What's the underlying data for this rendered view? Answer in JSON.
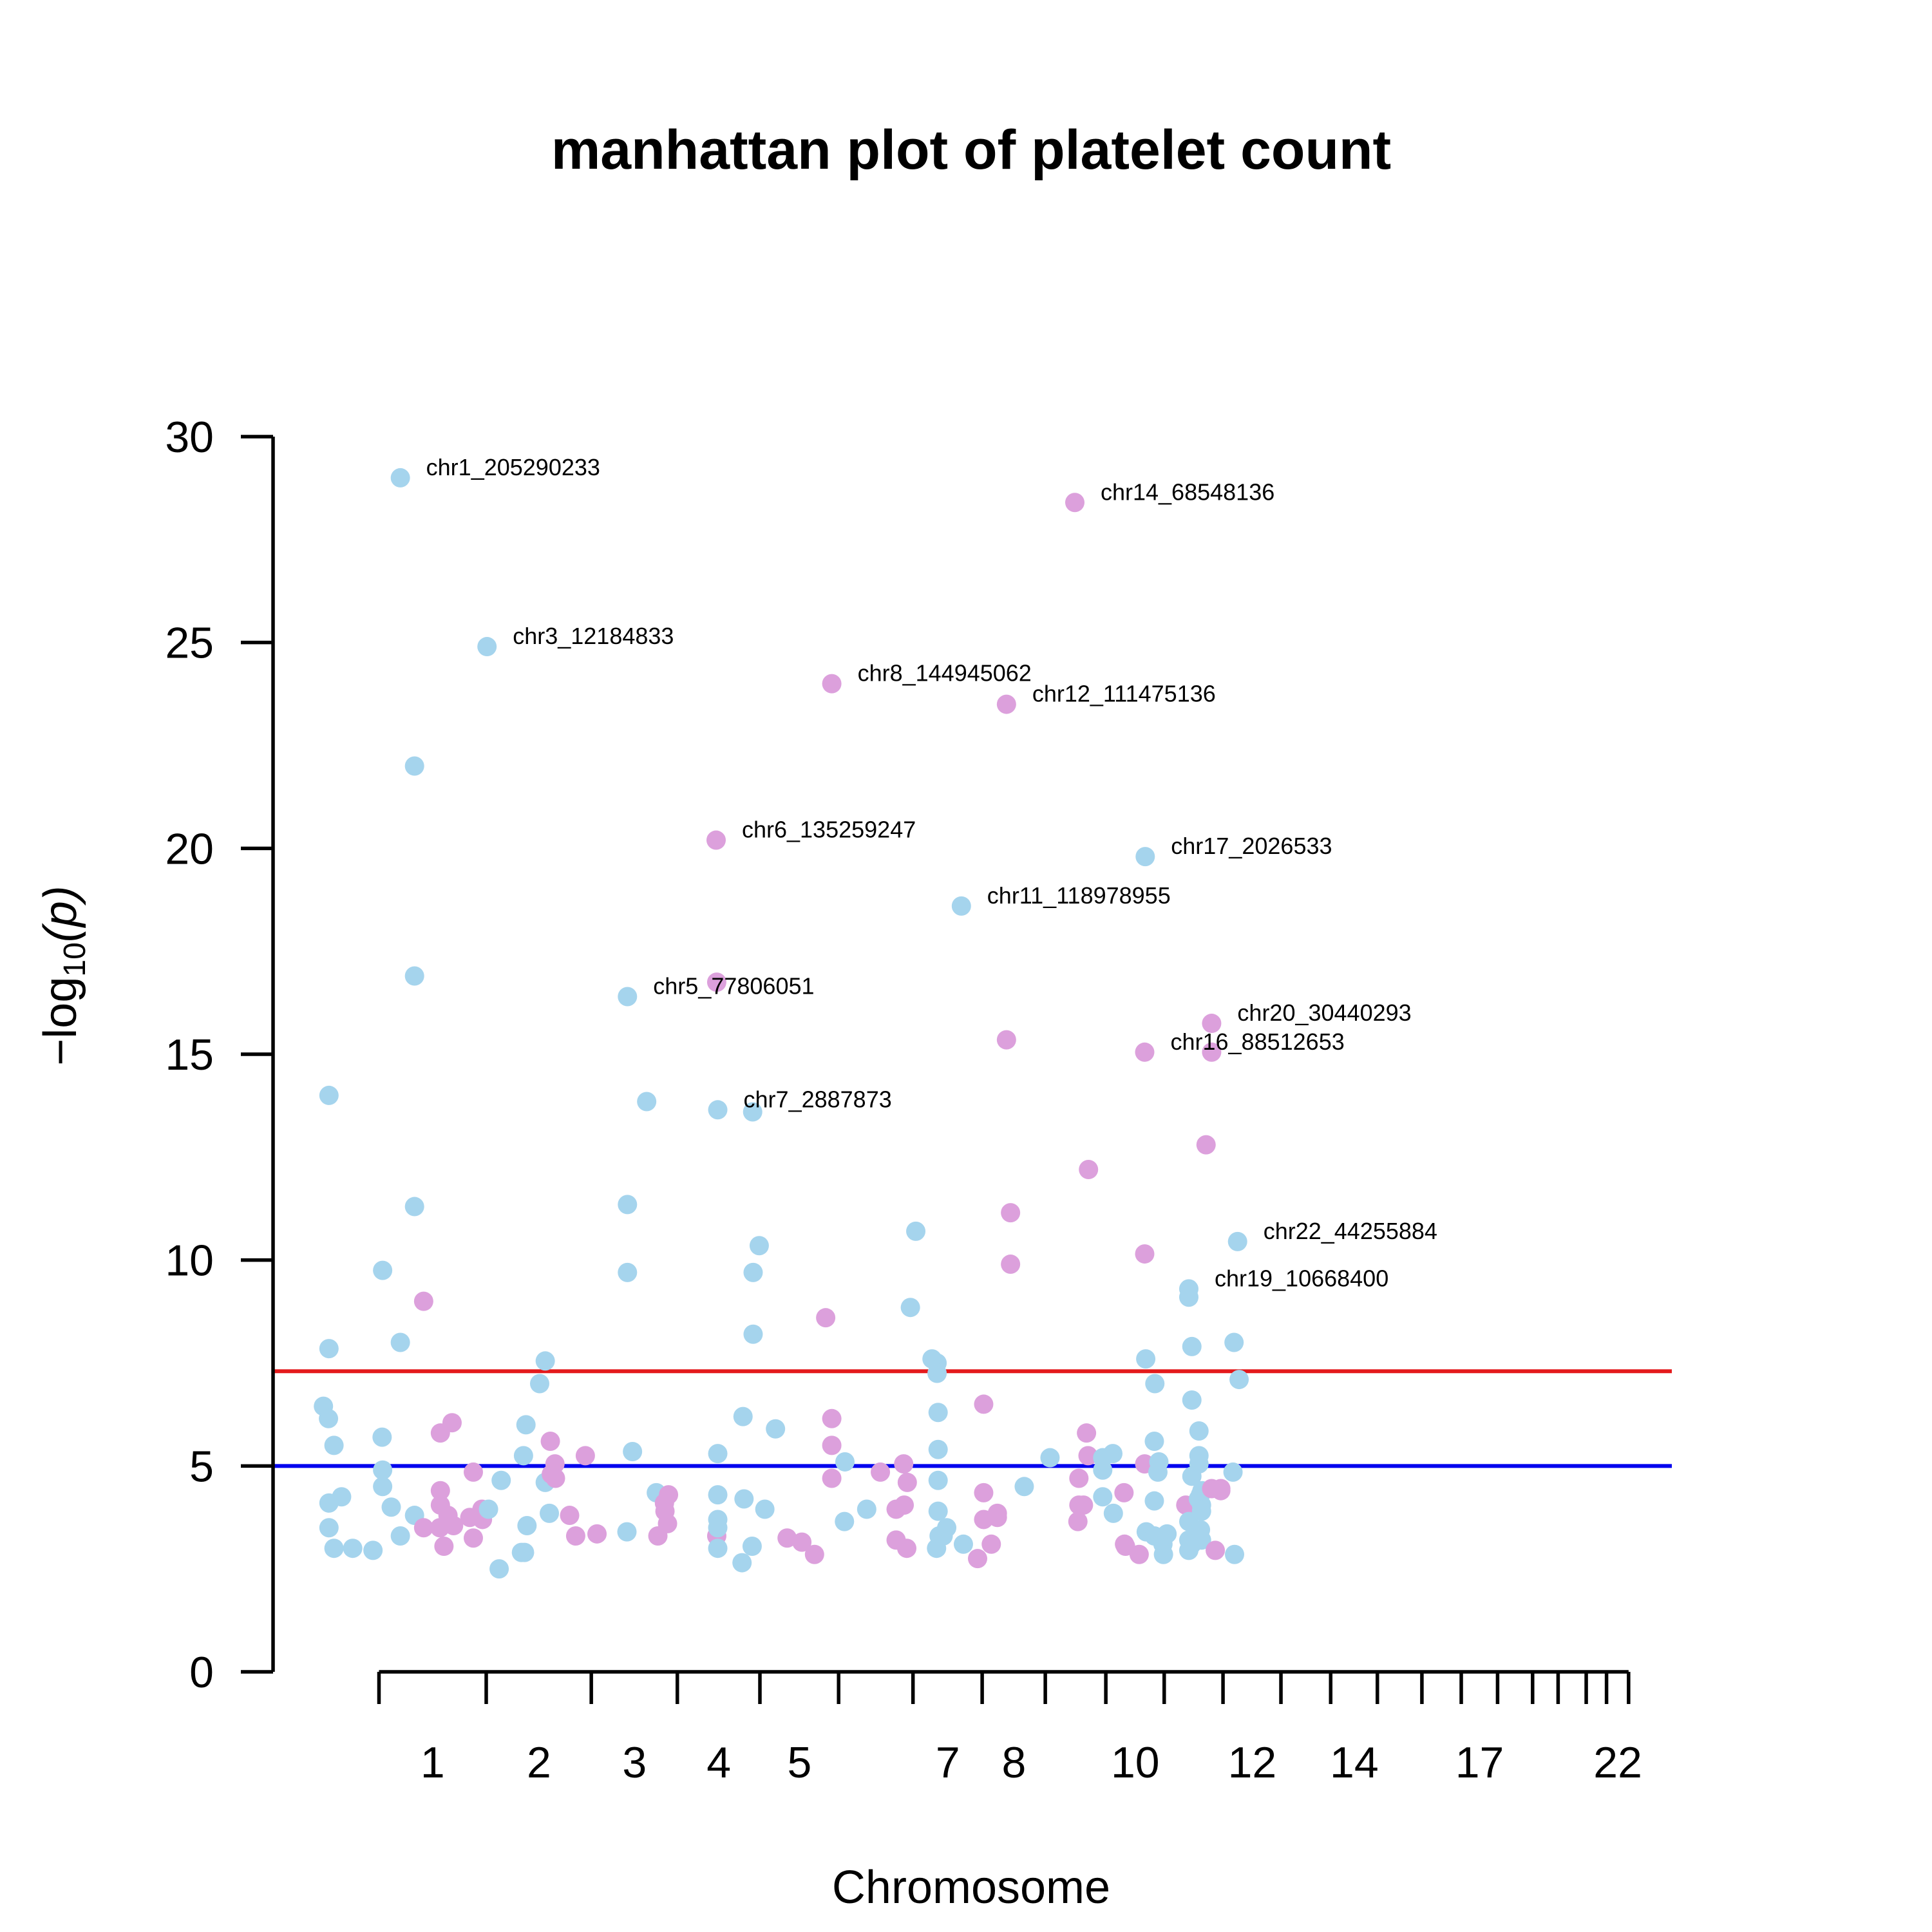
{
  "chart_data": {
    "type": "scatter",
    "title": "manhattan plot of platelet count",
    "xlabel": "Chromosome",
    "ylabel": "−log10(p)",
    "ylabel_parts": {
      "prefix": "−log",
      "sub": "10",
      "suffix": "(p)"
    },
    "ylim": [
      0,
      30
    ],
    "yticks": [
      0,
      5,
      10,
      15,
      20,
      25,
      30
    ],
    "colors": {
      "odd": "#a5d4ed",
      "even": "#dca0dc"
    },
    "thresholds": [
      {
        "y": 7.3,
        "color": "#e41a1c"
      },
      {
        "y": 5.0,
        "color": "#0000ee"
      }
    ],
    "chromosomes": [
      {
        "chr": 1,
        "start": 1.0,
        "end": 249.0,
        "label": "1"
      },
      {
        "chr": 2,
        "start": 250.0,
        "end": 492.0,
        "label": "2"
      },
      {
        "chr": 3,
        "start": 493.0,
        "end": 691.0,
        "label": "3"
      },
      {
        "chr": 4,
        "start": 692.0,
        "end": 882.0,
        "label": "4"
      },
      {
        "chr": 5,
        "start": 883.0,
        "end": 1064.0,
        "label": "5"
      },
      {
        "chr": 6,
        "start": 1065.0,
        "end": 1236.0,
        "label": ""
      },
      {
        "chr": 7,
        "start": 1237.0,
        "end": 1396.0,
        "label": "7"
      },
      {
        "chr": 8,
        "start": 1397.0,
        "end": 1542.0,
        "label": "8"
      },
      {
        "chr": 9,
        "start": 1543.0,
        "end": 1682.0,
        "label": ""
      },
      {
        "chr": 10,
        "start": 1683.0,
        "end": 1817.0,
        "label": "10"
      },
      {
        "chr": 11,
        "start": 1818.0,
        "end": 1953.0,
        "label": ""
      },
      {
        "chr": 12,
        "start": 1954.0,
        "end": 2087.0,
        "label": "12"
      },
      {
        "chr": 13,
        "start": 2088.0,
        "end": 2202.0,
        "label": ""
      },
      {
        "chr": 14,
        "start": 2203.0,
        "end": 2310.0,
        "label": "14"
      },
      {
        "chr": 15,
        "start": 2311.0,
        "end": 2413.0,
        "label": ""
      },
      {
        "chr": 16,
        "start": 2414.0,
        "end": 2504.0,
        "label": ""
      },
      {
        "chr": 17,
        "start": 2505.0,
        "end": 2588.0,
        "label": "17"
      },
      {
        "chr": 18,
        "start": 2589.0,
        "end": 2669.0,
        "label": ""
      },
      {
        "chr": 19,
        "start": 2670.0,
        "end": 2728.0,
        "label": ""
      },
      {
        "chr": 20,
        "start": 2729.0,
        "end": 2793.0,
        "label": ""
      },
      {
        "chr": 21,
        "start": 2794.0,
        "end": 2840.0,
        "label": ""
      },
      {
        "chr": 22,
        "start": 2841.0,
        "end": 2891.0,
        "label": "22"
      }
    ],
    "xlim": [
      -244.0,
      2991.0
    ],
    "points": [
      {
        "x": -127.5,
        "y": 6.45,
        "c": "odd"
      },
      {
        "x": -115.8,
        "y": 6.15,
        "c": "odd"
      },
      {
        "x": -114.7,
        "y": 7.85,
        "c": "odd"
      },
      {
        "x": -114.7,
        "y": 14.0,
        "c": "odd"
      },
      {
        "x": -114.7,
        "y": 4.1,
        "c": "odd"
      },
      {
        "x": -114.7,
        "y": 3.5,
        "c": "odd"
      },
      {
        "x": -103.1,
        "y": 5.5,
        "c": "odd"
      },
      {
        "x": -103.1,
        "y": 3.0,
        "c": "odd"
      },
      {
        "x": -85.5,
        "y": 4.25,
        "c": "odd"
      },
      {
        "x": -59.8,
        "y": 3.0,
        "c": "odd"
      },
      {
        "x": -12.9,
        "y": 2.95,
        "c": "odd"
      },
      {
        "x": 9.4,
        "y": 9.75,
        "c": "odd"
      },
      {
        "x": 8.2,
        "y": 5.7,
        "c": "odd"
      },
      {
        "x": 9.4,
        "y": 4.9,
        "c": "odd"
      },
      {
        "x": 9.4,
        "y": 4.5,
        "c": "odd"
      },
      {
        "x": 29.3,
        "y": 4.0,
        "c": "odd"
      },
      {
        "x": 50.4,
        "y": 8.0,
        "c": "odd"
      },
      {
        "x": 50.4,
        "y": 29.0,
        "c": "odd",
        "label": "chr1_205290233"
      },
      {
        "x": 50.4,
        "y": 3.3,
        "c": "odd"
      },
      {
        "x": 83.2,
        "y": 22.0,
        "c": "odd"
      },
      {
        "x": 83.2,
        "y": 16.9,
        "c": "odd"
      },
      {
        "x": 83.2,
        "y": 11.3,
        "c": "odd"
      },
      {
        "x": 83.2,
        "y": 3.8,
        "c": "odd"
      },
      {
        "x": 104.3,
        "y": 9.0,
        "c": "even"
      },
      {
        "x": 104.3,
        "y": 3.5,
        "c": "even"
      },
      {
        "x": 141.8,
        "y": 3.5,
        "c": "even"
      },
      {
        "x": 143.0,
        "y": 5.8,
        "c": "even"
      },
      {
        "x": 143.0,
        "y": 4.4,
        "c": "even"
      },
      {
        "x": 143.0,
        "y": 4.05,
        "c": "even"
      },
      {
        "x": 151.2,
        "y": 3.05,
        "c": "even"
      },
      {
        "x": 160.6,
        "y": 3.8,
        "c": "even"
      },
      {
        "x": 164.1,
        "y": 3.6,
        "c": "even"
      },
      {
        "x": 170.0,
        "y": 6.05,
        "c": "even"
      },
      {
        "x": 173.5,
        "y": 3.55,
        "c": "even"
      },
      {
        "x": 211.0,
        "y": 3.75,
        "c": "even"
      },
      {
        "x": 219.2,
        "y": 4.85,
        "c": "even"
      },
      {
        "x": 219.2,
        "y": 3.25,
        "c": "even"
      },
      {
        "x": 239.1,
        "y": 3.95,
        "c": "even"
      },
      {
        "x": 240.3,
        "y": 3.7,
        "c": "even"
      },
      {
        "x": 250.8,
        "y": 24.9,
        "c": "odd",
        "label": "chr3_12184833"
      },
      {
        "x": 254.3,
        "y": 3.95,
        "c": "odd"
      },
      {
        "x": 278.9,
        "y": 2.5,
        "c": "odd"
      },
      {
        "x": 283.6,
        "y": 4.65,
        "c": "odd"
      },
      {
        "x": 330.5,
        "y": 2.9,
        "c": "odd"
      },
      {
        "x": 335.2,
        "y": 5.25,
        "c": "odd"
      },
      {
        "x": 337.5,
        "y": 2.9,
        "c": "odd"
      },
      {
        "x": 340.9,
        "y": 6.0,
        "c": "odd"
      },
      {
        "x": 343.3,
        "y": 3.55,
        "c": "odd"
      },
      {
        "x": 372.6,
        "y": 7.0,
        "c": "odd"
      },
      {
        "x": 385.5,
        "y": 7.55,
        "c": "odd"
      },
      {
        "x": 385.5,
        "y": 4.6,
        "c": "odd"
      },
      {
        "x": 395.0,
        "y": 3.85,
        "c": "odd"
      },
      {
        "x": 397.3,
        "y": 5.6,
        "c": "even"
      },
      {
        "x": 399.6,
        "y": 4.8,
        "c": "even"
      },
      {
        "x": 408.0,
        "y": 5.05,
        "c": "even"
      },
      {
        "x": 409.1,
        "y": 4.7,
        "c": "even"
      },
      {
        "x": 441.9,
        "y": 3.8,
        "c": "even"
      },
      {
        "x": 455.9,
        "y": 3.3,
        "c": "even"
      },
      {
        "x": 478.2,
        "y": 5.25,
        "c": "even"
      },
      {
        "x": 505.2,
        "y": 3.35,
        "c": "even"
      },
      {
        "x": 575.6,
        "y": 16.4,
        "c": "odd",
        "label": "chr5_77806051"
      },
      {
        "x": 575.6,
        "y": 11.35,
        "c": "odd"
      },
      {
        "x": 575.6,
        "y": 9.7,
        "c": "odd"
      },
      {
        "x": 574.4,
        "y": 3.4,
        "c": "odd"
      },
      {
        "x": 587.3,
        "y": 5.35,
        "c": "odd"
      },
      {
        "x": 620.1,
        "y": 13.85,
        "c": "odd"
      },
      {
        "x": 642.4,
        "y": 4.35,
        "c": "odd"
      },
      {
        "x": 646.0,
        "y": 3.3,
        "c": "even"
      },
      {
        "x": 661.2,
        "y": 4.1,
        "c": "even"
      },
      {
        "x": 662.4,
        "y": 3.9,
        "c": "even"
      },
      {
        "x": 668.3,
        "y": 3.6,
        "c": "even"
      },
      {
        "x": 670.6,
        "y": 4.3,
        "c": "even"
      },
      {
        "x": 780.7,
        "y": 20.2,
        "c": "even",
        "label": "chr6_135259247"
      },
      {
        "x": 782.1,
        "y": 16.75,
        "c": "even"
      },
      {
        "x": 782.1,
        "y": 3.3,
        "c": "even"
      },
      {
        "x": 784.5,
        "y": 13.65,
        "c": "odd",
        "label": "chr7_2887873"
      },
      {
        "x": 784.5,
        "y": 5.3,
        "c": "odd"
      },
      {
        "x": 784.5,
        "y": 4.3,
        "c": "odd"
      },
      {
        "x": 784.5,
        "y": 3.7,
        "c": "odd"
      },
      {
        "x": 784.5,
        "y": 3.5,
        "c": "odd"
      },
      {
        "x": 784.5,
        "y": 3.0,
        "c": "odd"
      },
      {
        "x": 842.9,
        "y": 6.2,
        "c": "odd"
      },
      {
        "x": 845.2,
        "y": 4.2,
        "c": "odd"
      },
      {
        "x": 840.6,
        "y": 2.65,
        "c": "odd"
      },
      {
        "x": 865.2,
        "y": 13.6,
        "c": "odd"
      },
      {
        "x": 866.3,
        "y": 9.7,
        "c": "odd"
      },
      {
        "x": 866.3,
        "y": 8.2,
        "c": "odd"
      },
      {
        "x": 864.0,
        "y": 3.05,
        "c": "odd"
      },
      {
        "x": 880.4,
        "y": 10.35,
        "c": "odd"
      },
      {
        "x": 893.4,
        "y": 3.95,
        "c": "odd"
      },
      {
        "x": 918.0,
        "y": 5.9,
        "c": "odd"
      },
      {
        "x": 944.9,
        "y": 3.25,
        "c": "even"
      },
      {
        "x": 979.0,
        "y": 3.15,
        "c": "even"
      },
      {
        "x": 1008.3,
        "y": 2.85,
        "c": "even"
      },
      {
        "x": 1034.1,
        "y": 8.6,
        "c": "even"
      },
      {
        "x": 1048.2,
        "y": 24.0,
        "c": "even",
        "label": "chr8_144945062"
      },
      {
        "x": 1048.2,
        "y": 6.15,
        "c": "even"
      },
      {
        "x": 1048.2,
        "y": 5.5,
        "c": "even"
      },
      {
        "x": 1048.2,
        "y": 4.7,
        "c": "even"
      },
      {
        "x": 1078.6,
        "y": 5.1,
        "c": "odd"
      },
      {
        "x": 1077.5,
        "y": 3.65,
        "c": "odd"
      },
      {
        "x": 1129.0,
        "y": 3.95,
        "c": "odd"
      },
      {
        "x": 1160.6,
        "y": 4.85,
        "c": "even"
      },
      {
        "x": 1197.0,
        "y": 3.95,
        "c": "even"
      },
      {
        "x": 1197.0,
        "y": 3.2,
        "c": "even"
      },
      {
        "x": 1214.5,
        "y": 5.05,
        "c": "even"
      },
      {
        "x": 1215.7,
        "y": 4.05,
        "c": "even"
      },
      {
        "x": 1222.8,
        "y": 4.6,
        "c": "even"
      },
      {
        "x": 1221.6,
        "y": 3.0,
        "c": "even"
      },
      {
        "x": 1230.0,
        "y": 8.85,
        "c": "odd"
      },
      {
        "x": 1242.5,
        "y": 10.7,
        "c": "odd"
      },
      {
        "x": 1280.0,
        "y": 7.6,
        "c": "odd"
      },
      {
        "x": 1291.7,
        "y": 7.5,
        "c": "odd"
      },
      {
        "x": 1291.7,
        "y": 7.25,
        "c": "odd"
      },
      {
        "x": 1294.1,
        "y": 6.3,
        "c": "odd"
      },
      {
        "x": 1294.1,
        "y": 5.4,
        "c": "odd"
      },
      {
        "x": 1294.1,
        "y": 4.65,
        "c": "odd"
      },
      {
        "x": 1294.1,
        "y": 3.9,
        "c": "odd"
      },
      {
        "x": 1296.4,
        "y": 3.3,
        "c": "odd"
      },
      {
        "x": 1290.5,
        "y": 3.0,
        "c": "odd"
      },
      {
        "x": 1305.8,
        "y": 3.3,
        "c": "odd"
      },
      {
        "x": 1314.0,
        "y": 3.5,
        "c": "odd"
      },
      {
        "x": 1347.9,
        "y": 18.6,
        "c": "odd",
        "label": "chr11_118978955"
      },
      {
        "x": 1352.6,
        "y": 3.1,
        "c": "odd"
      },
      {
        "x": 1385.4,
        "y": 2.75,
        "c": "even"
      },
      {
        "x": 1399.5,
        "y": 6.5,
        "c": "even"
      },
      {
        "x": 1399.5,
        "y": 4.35,
        "c": "even"
      },
      {
        "x": 1399.5,
        "y": 3.7,
        "c": "even"
      },
      {
        "x": 1417.1,
        "y": 3.1,
        "c": "even"
      },
      {
        "x": 1431.1,
        "y": 3.85,
        "c": "even"
      },
      {
        "x": 1431.1,
        "y": 3.75,
        "c": "even"
      },
      {
        "x": 1452.2,
        "y": 23.5,
        "c": "even",
        "label": "chr12_111475136"
      },
      {
        "x": 1452.2,
        "y": 15.35,
        "c": "even"
      },
      {
        "x": 1461.6,
        "y": 11.15,
        "c": "even"
      },
      {
        "x": 1461.6,
        "y": 9.9,
        "c": "even"
      },
      {
        "x": 1493.3,
        "y": 4.5,
        "c": "odd"
      },
      {
        "x": 1552.9,
        "y": 5.2,
        "c": "odd"
      },
      {
        "x": 1610.3,
        "y": 28.4,
        "c": "even",
        "label": "chr14_68548136"
      },
      {
        "x": 1619.7,
        "y": 4.7,
        "c": "even"
      },
      {
        "x": 1619.7,
        "y": 4.05,
        "c": "even"
      },
      {
        "x": 1617.4,
        "y": 3.65,
        "c": "even"
      },
      {
        "x": 1630.2,
        "y": 4.05,
        "c": "even"
      },
      {
        "x": 1641.9,
        "y": 12.2,
        "c": "even"
      },
      {
        "x": 1637.3,
        "y": 5.8,
        "c": "even"
      },
      {
        "x": 1640.8,
        "y": 5.25,
        "c": "even"
      },
      {
        "x": 1674.8,
        "y": 5.2,
        "c": "odd"
      },
      {
        "x": 1674.8,
        "y": 4.9,
        "c": "odd"
      },
      {
        "x": 1674.8,
        "y": 4.25,
        "c": "odd"
      },
      {
        "x": 1698.2,
        "y": 5.3,
        "c": "odd"
      },
      {
        "x": 1699.4,
        "y": 3.85,
        "c": "odd"
      },
      {
        "x": 1724.0,
        "y": 4.35,
        "c": "even"
      },
      {
        "x": 1725.2,
        "y": 3.1,
        "c": "even"
      },
      {
        "x": 1727.5,
        "y": 3.05,
        "c": "even"
      },
      {
        "x": 1759.1,
        "y": 2.85,
        "c": "even"
      },
      {
        "x": 1771.9,
        "y": 15.05,
        "c": "even",
        "label": "chr16_88512653"
      },
      {
        "x": 1771.9,
        "y": 10.15,
        "c": "even"
      },
      {
        "x": 1771.9,
        "y": 5.05,
        "c": "even"
      },
      {
        "x": 1773.1,
        "y": 19.8,
        "c": "odd",
        "label": "chr17_2026533"
      },
      {
        "x": 1774.3,
        "y": 7.6,
        "c": "odd"
      },
      {
        "x": 1775.4,
        "y": 3.4,
        "c": "odd"
      },
      {
        "x": 1795.4,
        "y": 7.0,
        "c": "odd"
      },
      {
        "x": 1794.2,
        "y": 5.6,
        "c": "odd"
      },
      {
        "x": 1794.2,
        "y": 4.15,
        "c": "odd"
      },
      {
        "x": 1794.2,
        "y": 3.3,
        "c": "odd"
      },
      {
        "x": 1802.4,
        "y": 4.85,
        "c": "odd"
      },
      {
        "x": 1804.7,
        "y": 5.1,
        "c": "odd"
      },
      {
        "x": 1807.1,
        "y": 3.25,
        "c": "odd"
      },
      {
        "x": 1814.1,
        "y": 3.1,
        "c": "odd"
      },
      {
        "x": 1815.3,
        "y": 2.85,
        "c": "odd"
      },
      {
        "x": 1823.5,
        "y": 3.35,
        "c": "odd"
      },
      {
        "x": 1866.9,
        "y": 4.05,
        "c": "even"
      },
      {
        "x": 1873.9,
        "y": 9.3,
        "c": "odd",
        "label": "chr19_10668400"
      },
      {
        "x": 1873.9,
        "y": 9.1,
        "c": "odd"
      },
      {
        "x": 1873.9,
        "y": 3.65,
        "c": "odd"
      },
      {
        "x": 1873.9,
        "y": 3.2,
        "c": "odd"
      },
      {
        "x": 1873.9,
        "y": 2.95,
        "c": "odd"
      },
      {
        "x": 1881.0,
        "y": 7.9,
        "c": "odd"
      },
      {
        "x": 1881.0,
        "y": 6.6,
        "c": "odd"
      },
      {
        "x": 1881.0,
        "y": 4.75,
        "c": "odd"
      },
      {
        "x": 1881.0,
        "y": 3.1,
        "c": "odd"
      },
      {
        "x": 1897.4,
        "y": 5.85,
        "c": "odd"
      },
      {
        "x": 1897.4,
        "y": 5.25,
        "c": "odd"
      },
      {
        "x": 1897.4,
        "y": 5.05,
        "c": "odd"
      },
      {
        "x": 1896.2,
        "y": 4.2,
        "c": "odd"
      },
      {
        "x": 1900.9,
        "y": 4.3,
        "c": "odd"
      },
      {
        "x": 1900.9,
        "y": 3.45,
        "c": "odd"
      },
      {
        "x": 1903.3,
        "y": 4.05,
        "c": "odd"
      },
      {
        "x": 1903.3,
        "y": 3.9,
        "c": "odd"
      },
      {
        "x": 1903.3,
        "y": 3.2,
        "c": "odd"
      },
      {
        "x": 1904.4,
        "y": 4.4,
        "c": "odd"
      },
      {
        "x": 1913.8,
        "y": 12.8,
        "c": "even"
      },
      {
        "x": 1926.7,
        "y": 15.75,
        "c": "even",
        "label": "chr20_30440293"
      },
      {
        "x": 1926.7,
        "y": 15.05,
        "c": "even"
      },
      {
        "x": 1926.7,
        "y": 4.45,
        "c": "even"
      },
      {
        "x": 1935.1,
        "y": 2.95,
        "c": "even"
      },
      {
        "x": 1947.9,
        "y": 4.45,
        "c": "even"
      },
      {
        "x": 1947.9,
        "y": 4.4,
        "c": "even"
      },
      {
        "x": 1976.1,
        "y": 4.85,
        "c": "odd"
      },
      {
        "x": 1978.5,
        "y": 8.0,
        "c": "odd"
      },
      {
        "x": 1979.7,
        "y": 2.85,
        "c": "odd"
      },
      {
        "x": 1986.7,
        "y": 10.45,
        "c": "odd",
        "label": "chr22_44255884"
      },
      {
        "x": 1990.2,
        "y": 7.1,
        "c": "odd"
      }
    ]
  }
}
